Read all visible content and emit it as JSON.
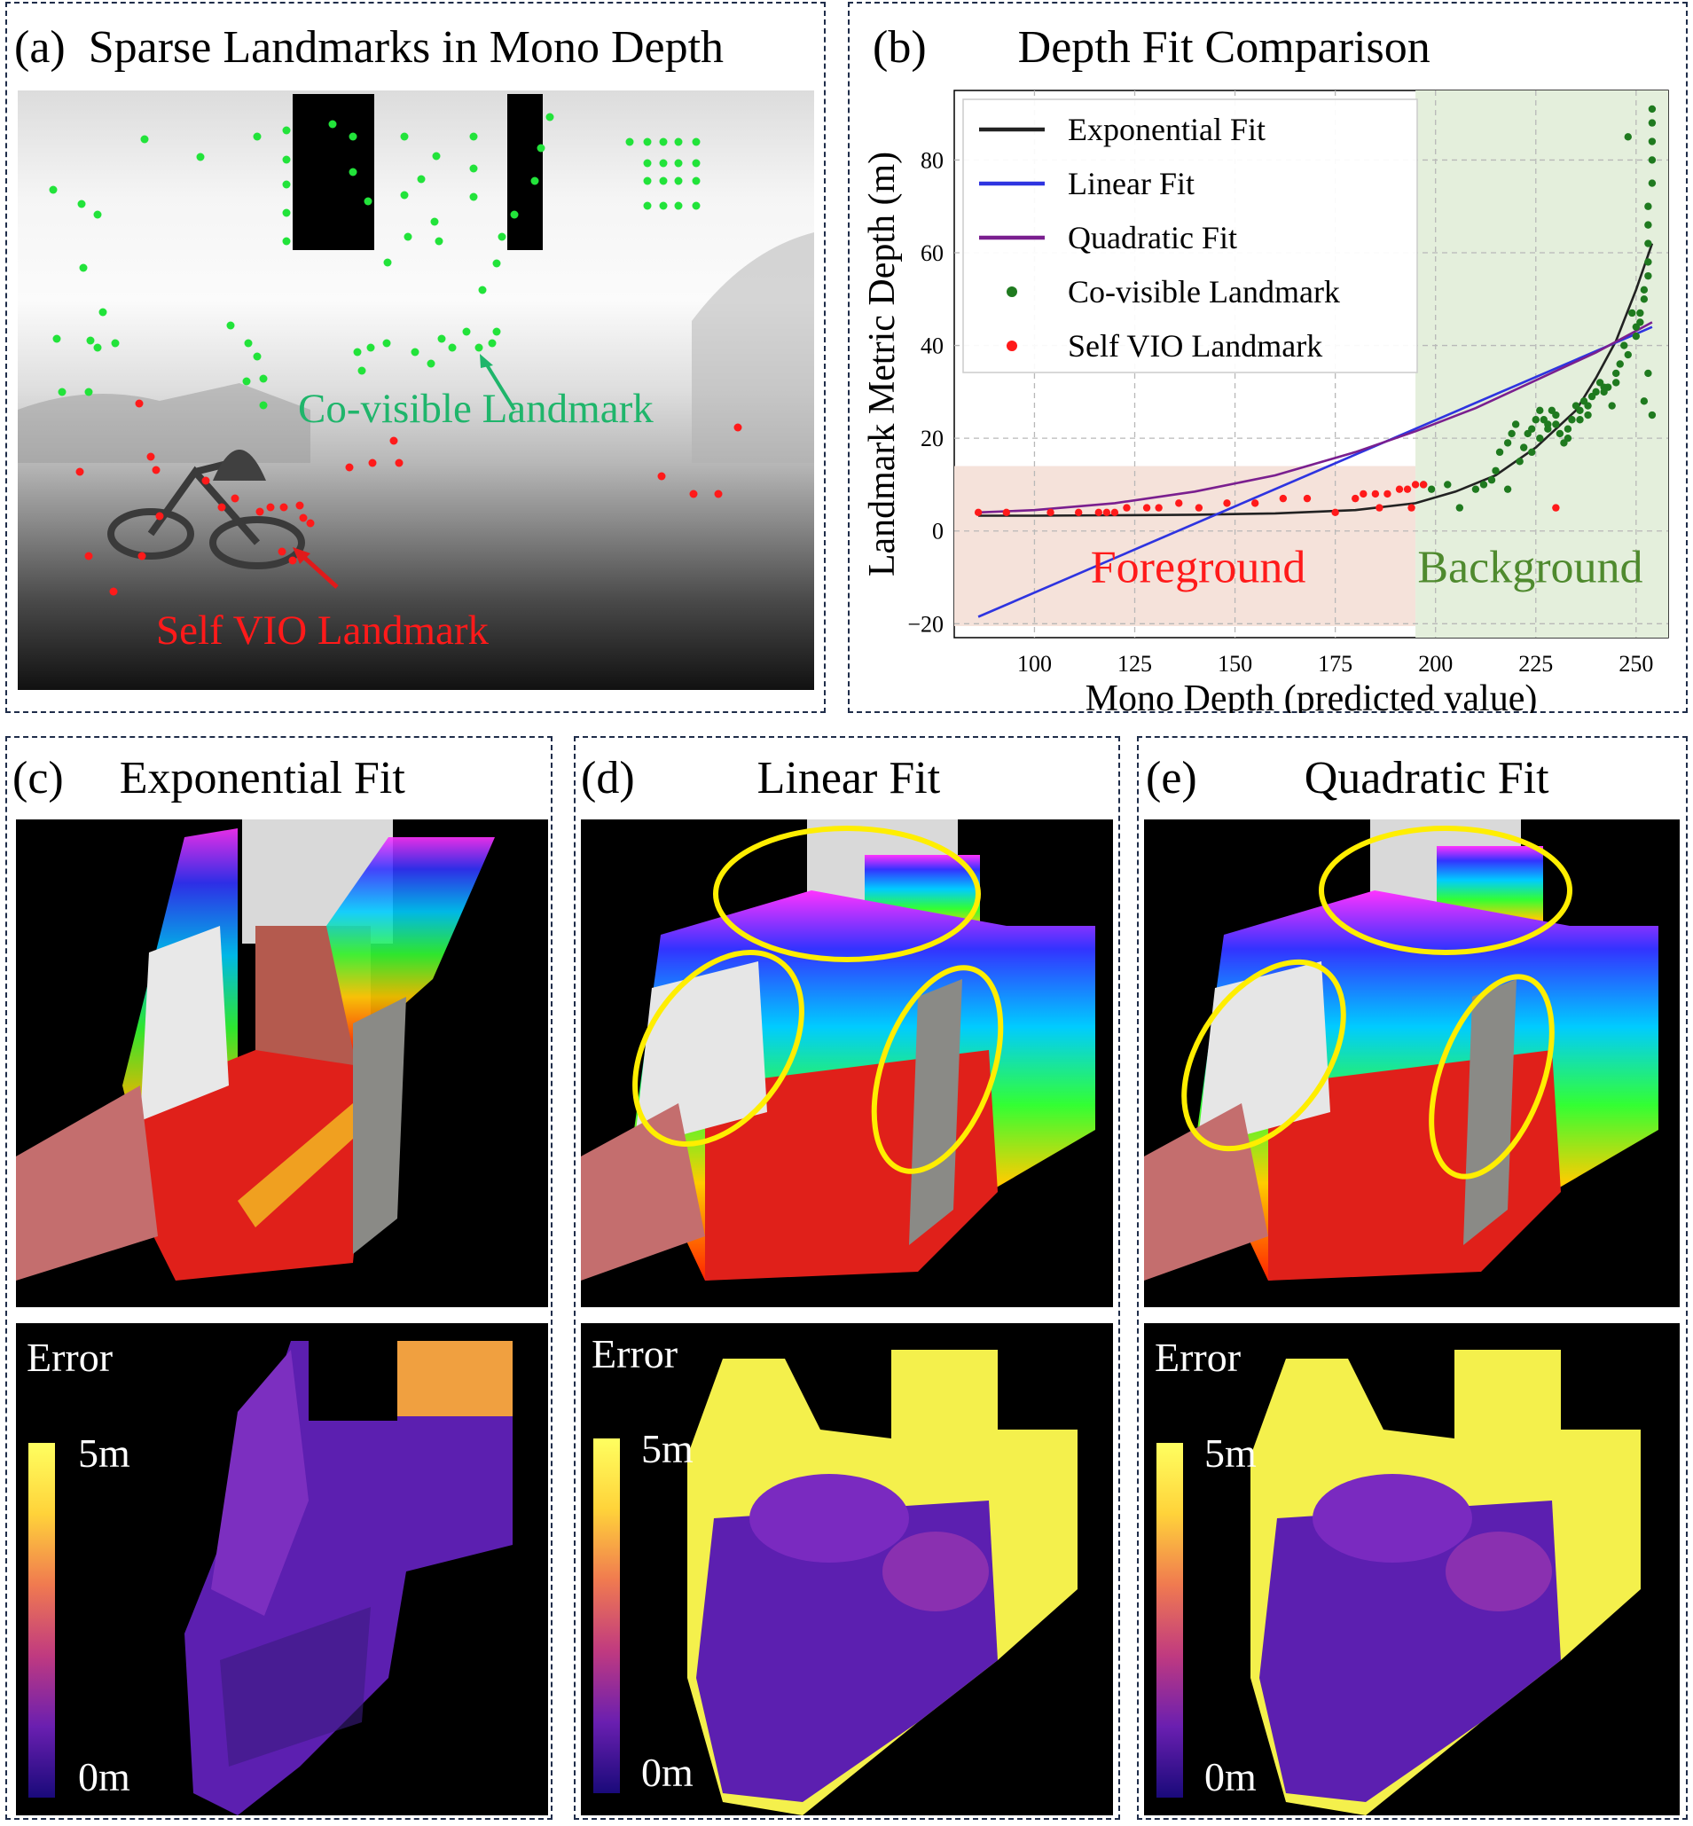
{
  "panel_a": {
    "label": "(a)",
    "title": "Sparse Landmarks in Mono Depth",
    "annotation_covisible": "Co-visible Landmark",
    "annotation_self": "Self VIO Landmark",
    "colors": {
      "covisible": "#22e33a",
      "self": "#ff1a1a",
      "covisible_text": "#1fb56b"
    }
  },
  "panel_b": {
    "label": "(b)",
    "title": "Depth Fit Comparison",
    "region_foreground": "Foreground",
    "region_background": "Background",
    "colors": {
      "foreground": "#f5e2da",
      "background": "#e4efdc",
      "foreground_text": "#ff1a1a",
      "background_text": "#4f8a2e"
    }
  },
  "chart_data": {
    "type": "scatter",
    "title": "Depth Fit Comparison",
    "xlabel": "Mono Depth (predicted value)",
    "ylabel": "Landmark Metric Depth (m)",
    "xlim": [
      80,
      258
    ],
    "ylim": [
      -23,
      95
    ],
    "xticks": [
      100,
      125,
      150,
      175,
      200,
      225,
      250
    ],
    "yticks": [
      -20,
      0,
      20,
      40,
      60,
      80
    ],
    "grid": true,
    "legend_position": "top-left",
    "legend": [
      "Exponential Fit",
      "Linear Fit",
      "Quadratic Fit",
      "Co-visible Landmark",
      "Self VIO Landmark"
    ],
    "series": [
      {
        "name": "Exponential Fit",
        "kind": "line",
        "color": "#222222",
        "x": [
          86,
          100,
          120,
          140,
          160,
          180,
          195,
          205,
          215,
          225,
          235,
          240,
          245,
          250,
          254
        ],
        "y": [
          3.3,
          3.3,
          3.4,
          3.5,
          3.8,
          4.5,
          6,
          8.5,
          12,
          18,
          26,
          33,
          41,
          52,
          62
        ]
      },
      {
        "name": "Linear Fit",
        "kind": "line",
        "color": "#2e34e0",
        "x": [
          86,
          254
        ],
        "y": [
          -18.5,
          44
        ]
      },
      {
        "name": "Quadratic Fit",
        "kind": "line",
        "color": "#7a1f8f",
        "x": [
          86,
          100,
          120,
          140,
          160,
          180,
          195,
          210,
          225,
          240,
          254
        ],
        "y": [
          4,
          4.5,
          6,
          8.5,
          12,
          17,
          21.5,
          26.5,
          32.5,
          38.5,
          45
        ]
      },
      {
        "name": "Co-visible Landmark",
        "kind": "points",
        "color": "#1f7a1f",
        "points": [
          [
            197,
            10
          ],
          [
            199,
            9
          ],
          [
            203,
            10
          ],
          [
            206,
            5
          ],
          [
            210,
            9
          ],
          [
            212,
            10
          ],
          [
            214,
            11
          ],
          [
            215,
            13
          ],
          [
            216,
            17
          ],
          [
            218,
            19
          ],
          [
            219,
            21
          ],
          [
            220,
            23
          ],
          [
            222,
            18
          ],
          [
            223,
            21
          ],
          [
            224,
            22
          ],
          [
            225,
            24
          ],
          [
            226,
            26
          ],
          [
            227,
            24
          ],
          [
            228,
            23
          ],
          [
            229,
            26
          ],
          [
            230,
            25
          ],
          [
            231,
            21
          ],
          [
            232,
            19
          ],
          [
            233,
            22
          ],
          [
            234,
            24
          ],
          [
            235,
            27
          ],
          [
            236,
            26
          ],
          [
            237,
            28
          ],
          [
            238,
            27
          ],
          [
            239,
            29
          ],
          [
            240,
            30
          ],
          [
            241,
            32
          ],
          [
            242,
            31
          ],
          [
            243,
            31
          ],
          [
            244,
            27
          ],
          [
            245,
            34
          ],
          [
            246,
            36
          ],
          [
            247,
            40
          ],
          [
            248,
            85
          ],
          [
            249,
            47
          ],
          [
            250,
            44
          ],
          [
            251,
            45
          ],
          [
            252,
            50
          ],
          [
            252,
            52
          ],
          [
            253,
            55
          ],
          [
            253,
            58
          ],
          [
            253,
            62
          ],
          [
            253,
            66
          ],
          [
            253,
            70
          ],
          [
            254,
            75
          ],
          [
            254,
            80
          ],
          [
            254,
            84
          ],
          [
            254,
            88
          ],
          [
            254,
            91
          ],
          [
            254,
            25
          ],
          [
            253,
            34
          ],
          [
            252,
            28
          ],
          [
            251,
            47
          ],
          [
            250,
            42
          ],
          [
            248,
            38
          ],
          [
            245,
            32
          ],
          [
            242,
            30
          ],
          [
            238,
            25
          ],
          [
            236,
            24
          ],
          [
            233,
            20
          ],
          [
            230,
            23
          ],
          [
            228,
            22
          ],
          [
            226,
            20
          ],
          [
            224,
            17
          ],
          [
            221,
            15
          ],
          [
            218,
            9
          ]
        ]
      },
      {
        "name": "Self VIO Landmark",
        "kind": "points",
        "color": "#ff1a1a",
        "points": [
          [
            86,
            4
          ],
          [
            93,
            4
          ],
          [
            104,
            4
          ],
          [
            111,
            4
          ],
          [
            116,
            4
          ],
          [
            118,
            4
          ],
          [
            120,
            4
          ],
          [
            123,
            5
          ],
          [
            128,
            5
          ],
          [
            131,
            5
          ],
          [
            136,
            6
          ],
          [
            141,
            5
          ],
          [
            148,
            6
          ],
          [
            155,
            6
          ],
          [
            162,
            7
          ],
          [
            168,
            7
          ],
          [
            175,
            4
          ],
          [
            180,
            7
          ],
          [
            182,
            8
          ],
          [
            185,
            8
          ],
          [
            188,
            8
          ],
          [
            191,
            9
          ],
          [
            193,
            9
          ],
          [
            195,
            10
          ],
          [
            197,
            10
          ],
          [
            194,
            5
          ],
          [
            186,
            5
          ],
          [
            230,
            5
          ]
        ]
      }
    ]
  },
  "panel_c": {
    "label": "(c)",
    "title": "Exponential Fit",
    "error_label": "Error",
    "scale_max": "5m",
    "scale_min": "0m"
  },
  "panel_d": {
    "label": "(d)",
    "title": "Linear Fit",
    "error_label": "Error",
    "scale_max": "5m",
    "scale_min": "0m"
  },
  "panel_e": {
    "label": "(e)",
    "title": "Quadratic Fit",
    "error_label": "Error",
    "scale_max": "5m",
    "scale_min": "0m"
  },
  "colors": {
    "border": "#1f2d4a",
    "highlight_ellipse": "#ffee00"
  }
}
